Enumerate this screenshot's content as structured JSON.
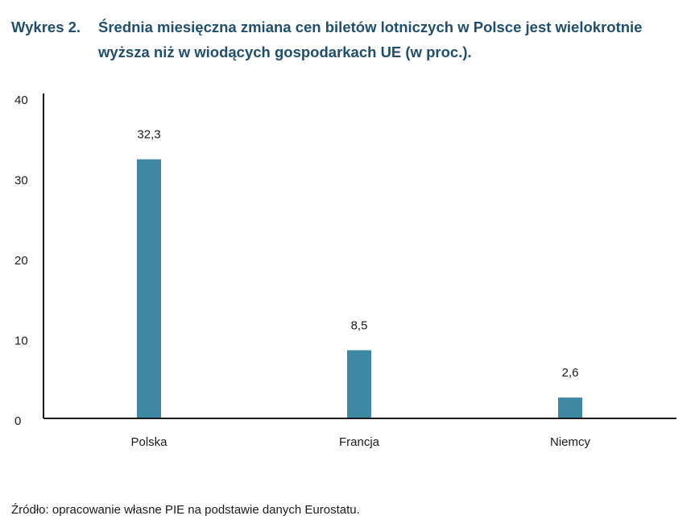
{
  "header": {
    "label": "Wykres 2.",
    "title": "Średnia miesięczna zmiana cen biletów lotniczych w Polsce jest wielokrotnie wyższa niż w wiodących gospodarkach UE (w proc.)."
  },
  "source": "Źródło: opracowanie własne PIE na podstawie danych Eurostatu.",
  "colors": {
    "bar": "#3e88a3",
    "axis": "#1a1a1a",
    "title": "#1f4e6e"
  },
  "chart_data": {
    "type": "bar",
    "categories": [
      "Polska",
      "Francja",
      "Niemcy"
    ],
    "values": [
      32.3,
      8.5,
      2.6
    ],
    "value_labels": [
      "32,3",
      "8,5",
      "2,6"
    ],
    "y_ticks": [
      "0",
      "10",
      "20",
      "30",
      "40"
    ],
    "ylim": [
      0,
      40
    ],
    "grid": false,
    "legend": "none"
  }
}
